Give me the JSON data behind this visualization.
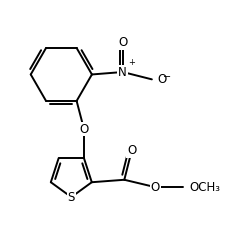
{
  "background_color": "#ffffff",
  "line_color": "#000000",
  "line_width": 1.4,
  "font_size": 8.5,
  "figsize": [
    2.5,
    2.4
  ],
  "dpi": 100,
  "xlim": [
    0.0,
    10.0
  ],
  "ylim": [
    0.0,
    10.0
  ]
}
